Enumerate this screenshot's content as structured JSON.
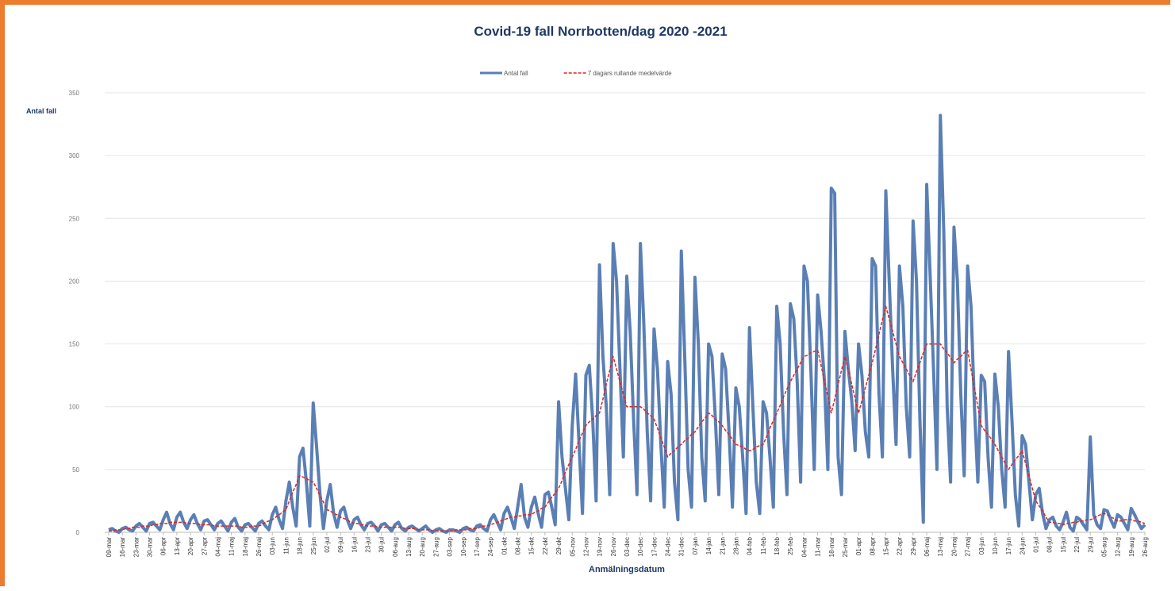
{
  "chart_data": {
    "type": "line",
    "title": "Covid-19 fall Norrbotten/dag 2020 -2021",
    "y_label": "Antal fall",
    "x_label": "Anmälningsdatum",
    "legend": "top",
    "grid": true,
    "ylim": [
      0,
      350
    ],
    "yticks": [
      0,
      50,
      100,
      150,
      200,
      250,
      300,
      350
    ],
    "categories": [
      "09-mar",
      null,
      null,
      null,
      "16-mar",
      null,
      null,
      null,
      "23-mar",
      null,
      null,
      null,
      "30-mar",
      null,
      null,
      null,
      "06-apr",
      null,
      null,
      null,
      "13-apr",
      null,
      null,
      null,
      "20-apr",
      null,
      null,
      null,
      "27-apr",
      null,
      null,
      null,
      "04-maj",
      null,
      null,
      null,
      "11-maj",
      null,
      null,
      null,
      "18-maj",
      null,
      null,
      null,
      "26-maj",
      null,
      null,
      null,
      "03-jun",
      null,
      null,
      null,
      "11-jun",
      null,
      null,
      null,
      "18-jun",
      null,
      null,
      null,
      "25-jun",
      null,
      null,
      null,
      "02-jul",
      null,
      null,
      null,
      "09-jul",
      null,
      null,
      null,
      "16-jul",
      null,
      null,
      null,
      "23-jul",
      null,
      null,
      null,
      "30-jul",
      null,
      null,
      null,
      "06-aug",
      null,
      null,
      null,
      "13-aug",
      null,
      null,
      null,
      "20-aug",
      null,
      null,
      null,
      "27-aug",
      null,
      null,
      null,
      "03-sep",
      null,
      null,
      null,
      "10-sep",
      null,
      null,
      null,
      "17-sep",
      null,
      null,
      null,
      "24-sep",
      null,
      null,
      null,
      "01-okt",
      null,
      null,
      null,
      "08-okt",
      null,
      null,
      null,
      "15-okt",
      null,
      null,
      null,
      "22-okt",
      null,
      null,
      null,
      "29-okt",
      null,
      null,
      null,
      "05-nov",
      null,
      null,
      null,
      "12-nov",
      null,
      null,
      null,
      "19-nov",
      null,
      null,
      null,
      "26-nov",
      null,
      null,
      null,
      "03-dec",
      null,
      null,
      null,
      "10-dec",
      null,
      null,
      null,
      "17-dec",
      null,
      null,
      null,
      "24-dec",
      null,
      null,
      null,
      "31-dec",
      null,
      null,
      null,
      "07-jan",
      null,
      null,
      null,
      "14-jan",
      null,
      null,
      null,
      "21-jan",
      null,
      null,
      null,
      "28-jan",
      null,
      null,
      null,
      "04-feb",
      null,
      null,
      null,
      "11-feb",
      null,
      null,
      null,
      "18-feb",
      null,
      null,
      null,
      "25-feb",
      null,
      null,
      null,
      "04-mar",
      null,
      null,
      null,
      "11-mar",
      null,
      null,
      null,
      "18-mar",
      null,
      null,
      null,
      "25-mar",
      null,
      null,
      null,
      "01-apr",
      null,
      null,
      null,
      "08-apr",
      null,
      null,
      null,
      "15-apr",
      null,
      null,
      null,
      "22-apr",
      null,
      null,
      null,
      "29-apr",
      null,
      null,
      null,
      "06-maj",
      null,
      null,
      null,
      "13-maj",
      null,
      null,
      null,
      "20-maj",
      null,
      null,
      null,
      "27-maj",
      null,
      null,
      null,
      "03-jun",
      null,
      null,
      null,
      "10-jun",
      null,
      null,
      null,
      "17-jun",
      null,
      null,
      null,
      "24-jun",
      null,
      null,
      null,
      "01-jul",
      null,
      null,
      null,
      "08-jul",
      null,
      null,
      null,
      "15-jul",
      null,
      null,
      null,
      "22-jul",
      null,
      null,
      null,
      "29-jul",
      null,
      null,
      null,
      "05-aug",
      null,
      null,
      null,
      "12-aug",
      null,
      null,
      null,
      "19-aug",
      null,
      null,
      null,
      "26-aug"
    ],
    "series": [
      {
        "name": "Antal fall",
        "color": "#5a7fb5",
        "style": "solid",
        "values": [
          2,
          3,
          1,
          0,
          3,
          4,
          2,
          1,
          5,
          7,
          4,
          1,
          7,
          8,
          5,
          2,
          10,
          16,
          7,
          2,
          12,
          16,
          8,
          3,
          10,
          14,
          7,
          2,
          9,
          10,
          6,
          2,
          7,
          9,
          5,
          1,
          8,
          11,
          4,
          1,
          6,
          7,
          4,
          1,
          7,
          9,
          5,
          2,
          14,
          20,
          10,
          3,
          25,
          40,
          20,
          5,
          60,
          67,
          40,
          5,
          103,
          68,
          30,
          3,
          25,
          38,
          15,
          4,
          17,
          20,
          10,
          3,
          10,
          12,
          6,
          2,
          7,
          8,
          5,
          1,
          6,
          7,
          4,
          1,
          6,
          8,
          3,
          1,
          4,
          5,
          3,
          1,
          3,
          5,
          2,
          0,
          2,
          3,
          1,
          0,
          2,
          2,
          1,
          0,
          3,
          4,
          2,
          1,
          5,
          6,
          3,
          1,
          10,
          14,
          8,
          2,
          15,
          20,
          12,
          3,
          20,
          38,
          12,
          4,
          20,
          28,
          15,
          4,
          30,
          32,
          20,
          6,
          104,
          60,
          35,
          10,
          85,
          126,
          70,
          15,
          125,
          133,
          90,
          25,
          213,
          140,
          100,
          30,
          230,
          200,
          130,
          60,
          204,
          160,
          90,
          30,
          230,
          166,
          80,
          25,
          162,
          130,
          70,
          20,
          136,
          110,
          40,
          10,
          224,
          140,
          50,
          20,
          203,
          150,
          60,
          25,
          150,
          140,
          90,
          30,
          142,
          130,
          80,
          20,
          115,
          100,
          60,
          15,
          163,
          100,
          40,
          15,
          104,
          95,
          60,
          20,
          180,
          150,
          80,
          30,
          182,
          170,
          120,
          40,
          212,
          200,
          130,
          50,
          189,
          160,
          120,
          50,
          274,
          270,
          60,
          30,
          160,
          130,
          105,
          65,
          150,
          125,
          80,
          60,
          218,
          212,
          110,
          60,
          272,
          200,
          130,
          70,
          212,
          180,
          100,
          60,
          248,
          200,
          90,
          8,
          277,
          205,
          130,
          50,
          332,
          240,
          100,
          40,
          243,
          200,
          110,
          45,
          212,
          180,
          100,
          40,
          125,
          120,
          60,
          20,
          126,
          100,
          50,
          20,
          144,
          90,
          30,
          5,
          77,
          70,
          40,
          10,
          30,
          35,
          15,
          3,
          10,
          12,
          5,
          2,
          8,
          16,
          4,
          1,
          12,
          10,
          6,
          2,
          76,
          14,
          6,
          3,
          18,
          17,
          10,
          4,
          14,
          12,
          7,
          2,
          19,
          14,
          8,
          3,
          6
        ]
      },
      {
        "name": "7 dagars rullande medelvärde",
        "color": "#e3231c",
        "style": "dashed",
        "values": [
          1,
          1,
          2,
          2,
          2,
          3,
          3,
          4,
          4,
          4,
          5,
          5,
          5,
          6,
          6,
          7,
          7,
          7,
          8,
          8,
          8,
          8,
          8,
          7,
          7,
          7,
          7,
          6,
          6,
          6,
          6,
          5,
          5,
          5,
          5,
          5,
          5,
          5,
          5,
          4,
          4,
          4,
          5,
          5,
          5,
          6,
          8,
          9,
          10,
          12,
          14,
          16,
          18,
          25,
          32,
          38,
          45,
          44,
          43,
          41,
          40,
          35,
          29,
          24,
          18,
          17,
          15,
          14,
          12,
          11,
          10,
          8,
          7,
          7,
          6,
          6,
          5,
          5,
          5,
          4,
          4,
          4,
          4,
          4,
          4,
          4,
          4,
          3,
          3,
          3,
          3,
          2,
          2,
          2,
          2,
          1,
          1,
          1,
          1,
          1,
          1,
          1,
          2,
          2,
          2,
          2,
          3,
          3,
          3,
          4,
          5,
          5,
          6,
          7,
          8,
          9,
          10,
          11,
          12,
          12,
          13,
          13,
          14,
          14,
          14,
          16,
          17,
          19,
          20,
          24,
          28,
          31,
          35,
          41,
          48,
          54,
          60,
          66,
          73,
          79,
          85,
          88,
          90,
          93,
          95,
          106,
          118,
          129,
          140,
          130,
          120,
          110,
          100,
          100,
          100,
          100,
          100,
          98,
          95,
          93,
          90,
          83,
          75,
          68,
          60,
          63,
          65,
          68,
          70,
          73,
          75,
          78,
          80,
          84,
          88,
          91,
          95,
          93,
          90,
          88,
          85,
          81,
          78,
          74,
          70,
          69,
          68,
          66,
          65,
          66,
          68,
          69,
          70,
          76,
          83,
          89,
          95,
          101,
          108,
          114,
          120,
          125,
          130,
          135,
          140,
          141,
          143,
          144,
          145,
          133,
          120,
          108,
          95,
          106,
          118,
          129,
          140,
          129,
          118,
          106,
          95,
          105,
          115,
          125,
          135,
          146,
          158,
          169,
          180,
          170,
          160,
          150,
          140,
          135,
          130,
          125,
          120,
          128,
          135,
          143,
          150,
          150,
          150,
          150,
          150,
          146,
          143,
          139,
          135,
          138,
          140,
          143,
          145,
          130,
          115,
          100,
          85,
          81,
          78,
          74,
          70,
          65,
          60,
          55,
          50,
          54,
          58,
          61,
          65,
          55,
          45,
          35,
          25,
          21,
          17,
          12,
          8,
          8,
          7,
          7,
          6,
          7,
          7,
          8,
          8,
          9,
          9,
          10,
          10,
          11,
          13,
          14,
          15,
          14,
          12,
          11,
          9,
          9,
          10,
          10,
          10,
          9,
          9,
          8,
          7
        ]
      }
    ]
  }
}
